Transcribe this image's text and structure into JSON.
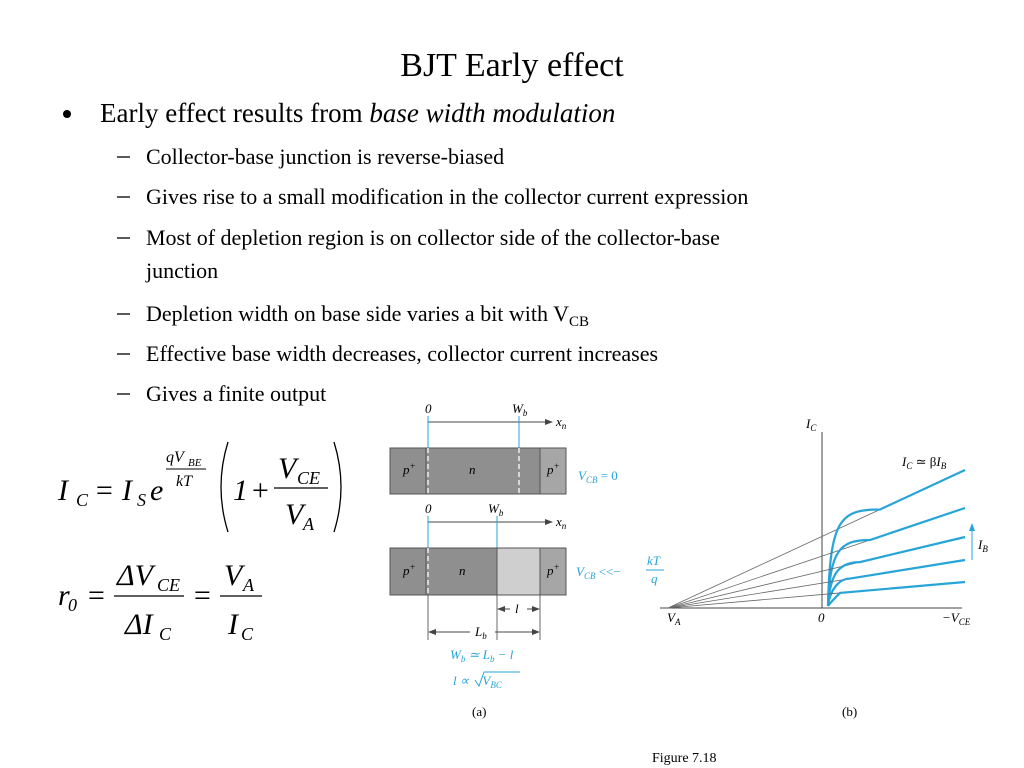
{
  "title": "BJT Early effect",
  "bullet": {
    "text": "Early effect results from ",
    "emphasis": "base width modulation"
  },
  "sub_bullets": [
    "Collector-base junction is reverse-biased",
    "Gives rise to a small modification in the collector current expression",
    {
      "line_1": "Most of depletion region is on collector side of the collector-base",
      "line_2": "junction"
    },
    {
      "text": "Depletion width on base side varies a bit with V",
      "subscript": "CB"
    },
    "Effective base width decreases, collector current increases",
    "Gives a finite output"
  ],
  "equation_1": [
    "I",
    "C",
    "=",
    "I",
    "S",
    "e",
    "qV",
    "BE",
    "kT",
    "1",
    "+",
    "V",
    "CE",
    "V",
    "A"
  ],
  "equation_2": [
    "r",
    "0",
    "=",
    "ΔV",
    "CE",
    "ΔI",
    "C",
    "=",
    "V",
    "A",
    "I",
    "C"
  ],
  "figure_a": {
    "origin": "0",
    "w": "W",
    "w_sub": "b",
    "x": "x",
    "x_sub": "n",
    "p": "p",
    "plus": "+",
    "n": "n",
    "v": "V",
    "v_sub": "CB",
    "eq_zero": " = 0",
    "much_less": " <<−",
    "kT": "kT",
    "q": "q",
    "l": "l",
    "L": "L",
    "L_sub": "b",
    "relation_1": [
      "W",
      "b",
      " ≃ L",
      "b",
      " − l"
    ],
    "relation_2": [
      "l ∝ ",
      "V",
      "BC"
    ],
    "caption": "(a)"
  },
  "figure_b": {
    "y_label": [
      "I",
      "C"
    ],
    "slope_label": [
      "I",
      "C",
      " ≃ β",
      "I",
      "B"
    ],
    "ib": [
      "I",
      "B"
    ],
    "va": [
      "V",
      "A"
    ],
    "origin": "0",
    "x_label": [
      "−V",
      "CE"
    ],
    "caption": "(b)"
  },
  "figure_caption": "Figure 7.18"
}
